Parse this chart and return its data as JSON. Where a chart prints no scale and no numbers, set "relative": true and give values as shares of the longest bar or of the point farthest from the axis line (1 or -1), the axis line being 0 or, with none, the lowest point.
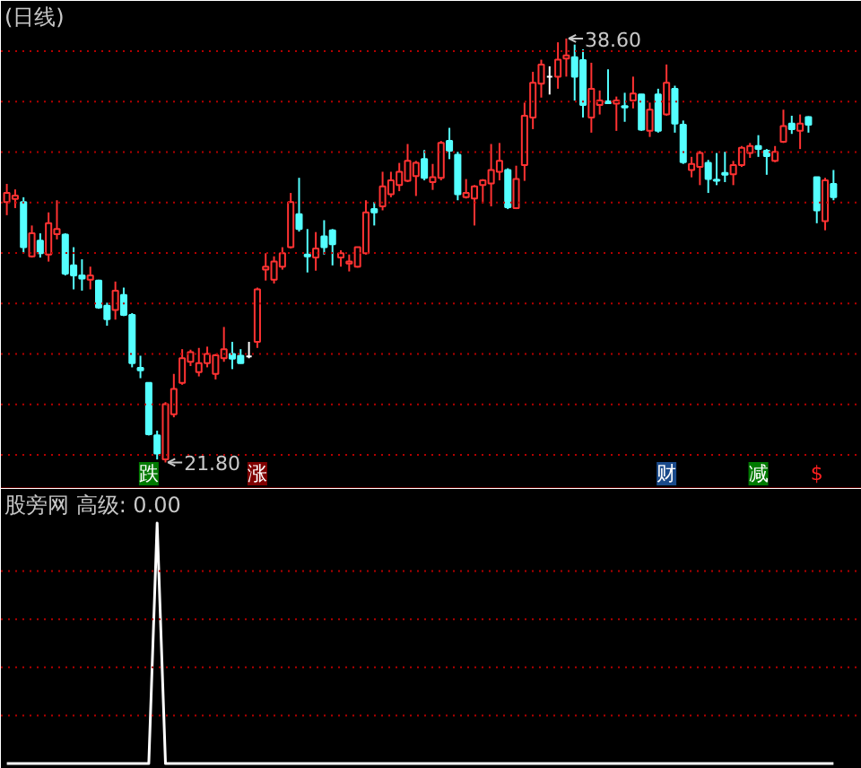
{
  "chart_data": [
    {
      "type": "candlestick",
      "title": "(日线)",
      "categories": [
        null,
        null,
        null,
        null,
        null,
        null,
        null,
        null,
        null,
        null,
        null,
        null,
        null,
        null,
        null,
        null,
        null,
        null,
        null,
        null,
        null,
        null,
        null,
        null,
        null,
        null,
        null,
        null,
        null,
        null,
        null,
        null,
        null,
        null,
        null,
        null,
        null,
        null,
        null,
        null,
        null,
        null,
        null,
        null,
        null,
        null,
        null,
        null,
        null,
        null,
        null,
        null,
        null,
        null,
        null,
        null,
        null,
        null,
        null,
        null,
        null,
        null,
        null,
        null,
        null,
        null,
        null,
        null,
        null,
        null,
        null,
        null,
        null,
        null,
        null,
        null,
        null,
        null,
        null,
        null,
        null,
        null,
        null,
        null,
        null,
        null,
        null,
        null,
        null,
        null,
        null,
        null,
        null,
        null,
        null,
        null,
        null,
        null,
        null,
        null
      ],
      "ohlc": [
        [
          32.12,
          32.84,
          31.6,
          32.48
        ],
        [
          32.24,
          32.62,
          31.88,
          32.38
        ],
        [
          32.12,
          32.31,
          30.09,
          30.33
        ],
        [
          29.97,
          31.19,
          29.92,
          30.88
        ],
        [
          30.59,
          30.88,
          29.92,
          30.09
        ],
        [
          30.04,
          31.71,
          29.76,
          31.28
        ],
        [
          30.85,
          32.19,
          30.64,
          31.05
        ],
        [
          30.83,
          30.88,
          29.21,
          29.28
        ],
        [
          29.61,
          30.33,
          28.66,
          29.21
        ],
        [
          29.21,
          29.85,
          28.61,
          29.09
        ],
        [
          29.04,
          29.56,
          28.66,
          29.21
        ],
        [
          29.01,
          29.04,
          27.89,
          27.94
        ],
        [
          28.01,
          28.13,
          27.22,
          27.48
        ],
        [
          27.84,
          28.97,
          27.46,
          28.61
        ],
        [
          28.44,
          28.73,
          27.6,
          27.65
        ],
        [
          27.65,
          27.72,
          25.57,
          25.74
        ],
        [
          25.55,
          26.03,
          25.14,
          25.45
        ],
        [
          24.95,
          24.98,
          22.87,
          22.92
        ],
        [
          22.87,
          23.06,
          21.92,
          22.15
        ],
        [
          21.92,
          24.19,
          21.8,
          24.11
        ],
        [
          23.71,
          25.31,
          23.59,
          24.71
        ],
        [
          24.95,
          26.29,
          24.88,
          25.93
        ],
        [
          25.79,
          26.27,
          25.62,
          26.17
        ],
        [
          25.38,
          26.34,
          25.21,
          25.74
        ],
        [
          25.74,
          26.39,
          25.57,
          26.1
        ],
        [
          25.31,
          26.1,
          25.09,
          26.05
        ],
        [
          25.93,
          27.17,
          25.79,
          26.29
        ],
        [
          26.1,
          26.58,
          25.5,
          25.91
        ],
        [
          26.03,
          26.29,
          25.72,
          25.74
        ],
        [
          26.0,
          26.58,
          25.93,
          26.0
        ],
        [
          26.58,
          28.73,
          26.34,
          28.66
        ],
        [
          29.44,
          30.09,
          29.01,
          29.56
        ],
        [
          29.04,
          29.97,
          28.89,
          29.76
        ],
        [
          29.56,
          30.33,
          29.44,
          30.09
        ],
        [
          30.33,
          32.48,
          30.28,
          32.12
        ],
        [
          31.64,
          33.08,
          30.95,
          31.05
        ],
        [
          30.04,
          31.05,
          29.33,
          29.97
        ],
        [
          29.92,
          30.93,
          29.4,
          30.28
        ],
        [
          30.76,
          31.4,
          30.04,
          30.33
        ],
        [
          31.0,
          31.05,
          29.61,
          30.45
        ],
        [
          29.92,
          30.21,
          29.56,
          30.09
        ],
        [
          29.68,
          30.04,
          29.37,
          29.76
        ],
        [
          29.56,
          30.35,
          29.52,
          30.33
        ],
        [
          30.09,
          32.19,
          30.04,
          31.71
        ],
        [
          31.84,
          32.12,
          31.19,
          31.71
        ],
        [
          31.95,
          33.32,
          31.79,
          32.74
        ],
        [
          32.43,
          33.32,
          32.31,
          32.98
        ],
        [
          32.79,
          33.67,
          32.55,
          33.32
        ],
        [
          32.96,
          34.42,
          32.91,
          33.75
        ],
        [
          33.15,
          33.75,
          32.36,
          33.67
        ],
        [
          33.82,
          34.18,
          32.98,
          33.08
        ],
        [
          32.91,
          33.63,
          32.6,
          33.1
        ],
        [
          33.08,
          34.54,
          32.98,
          34.46
        ],
        [
          34.54,
          35.06,
          33.82,
          34.15
        ],
        [
          33.99,
          34.11,
          32.19,
          32.43
        ],
        [
          32.31,
          33.03,
          32.26,
          32.48
        ],
        [
          32.26,
          32.79,
          31.19,
          32.74
        ],
        [
          32.79,
          33.03,
          32.07,
          32.98
        ],
        [
          32.86,
          34.42,
          31.95,
          33.39
        ],
        [
          33.32,
          34.46,
          32.98,
          33.75
        ],
        [
          33.39,
          33.46,
          31.84,
          31.91
        ],
        [
          31.88,
          33.56,
          31.84,
          33.03
        ],
        [
          33.58,
          36.06,
          32.96,
          35.54
        ],
        [
          35.47,
          37.28,
          35.01,
          36.85
        ],
        [
          36.81,
          37.76,
          36.26,
          37.57
        ],
        [
          37.09,
          37.5,
          36.38,
          37.09
        ],
        [
          37.09,
          38.45,
          36.61,
          37.76
        ],
        [
          37.81,
          38.6,
          37.09,
          37.93
        ],
        [
          37.86,
          38.36,
          36.14,
          37.09
        ],
        [
          37.74,
          38.17,
          35.47,
          35.97
        ],
        [
          35.47,
          37.64,
          34.87,
          36.61
        ],
        [
          35.97,
          36.54,
          35.59,
          36.14
        ],
        [
          36.11,
          37.38,
          36.02,
          36.04
        ],
        [
          36.02,
          36.3,
          34.94,
          36.14
        ],
        [
          35.92,
          36.45,
          35.3,
          35.87
        ],
        [
          36.14,
          37.09,
          35.83,
          36.42
        ],
        [
          36.38,
          36.4,
          34.94,
          34.99
        ],
        [
          34.94,
          36.06,
          34.7,
          35.78
        ],
        [
          36.38,
          36.61,
          34.87,
          34.94
        ],
        [
          35.59,
          37.57,
          35.54,
          36.85
        ],
        [
          36.61,
          36.73,
          34.87,
          35.23
        ],
        [
          35.18,
          35.35,
          33.63,
          33.7
        ],
        [
          33.39,
          33.91,
          33.1,
          33.63
        ],
        [
          33.51,
          34.15,
          32.79,
          34.06
        ],
        [
          33.67,
          33.79,
          32.48,
          33.03
        ],
        [
          33.01,
          34.06,
          32.79,
          32.96
        ],
        [
          33.27,
          34.11,
          32.91,
          33.2
        ],
        [
          33.22,
          33.75,
          32.79,
          33.58
        ],
        [
          33.58,
          34.34,
          33.51,
          34.27
        ],
        [
          34.06,
          34.46,
          33.87,
          34.34
        ],
        [
          34.34,
          34.77,
          33.91,
          34.22
        ],
        [
          34.15,
          34.22,
          33.2,
          33.94
        ],
        [
          33.75,
          34.34,
          33.7,
          34.11
        ],
        [
          34.51,
          35.78,
          34.46,
          35.13
        ],
        [
          35.23,
          35.54,
          34.82,
          35.01
        ],
        [
          34.94,
          35.59,
          34.22,
          35.23
        ],
        [
          35.49,
          35.52,
          34.87,
          35.18
        ],
        [
          33.1,
          33.12,
          31.28,
          31.79
        ],
        [
          31.36,
          33.08,
          31.0,
          32.98
        ],
        [
          32.84,
          33.39,
          32.19,
          32.31
        ]
      ],
      "colors": [
        "#ff3232",
        "#ff3232",
        "#54ffff",
        "#ff3232",
        "#54ffff",
        "#ff3232",
        "#ff3232",
        "#54ffff",
        "#54ffff",
        "#54ffff",
        "#ff3232",
        "#54ffff",
        "#54ffff",
        "#ff3232",
        "#54ffff",
        "#54ffff",
        "#54ffff",
        "#54ffff",
        "#54ffff",
        "#ff3232",
        "#ff3232",
        "#ff3232",
        "#ff3232",
        "#ff3232",
        "#ff3232",
        "#ff3232",
        "#ff3232",
        "#54ffff",
        "#54ffff",
        "#ffffff",
        "#ff3232",
        "#ff3232",
        "#ff3232",
        "#ff3232",
        "#ff3232",
        "#54ffff",
        "#54ffff",
        "#ff3232",
        "#54ffff",
        "#54ffff",
        "#ff3232",
        "#ff3232",
        "#ff3232",
        "#ff3232",
        "#54ffff",
        "#ff3232",
        "#ff3232",
        "#ff3232",
        "#ff3232",
        "#ff3232",
        "#54ffff",
        "#ff3232",
        "#ff3232",
        "#54ffff",
        "#54ffff",
        "#ff3232",
        "#ff3232",
        "#ff3232",
        "#ff3232",
        "#ff3232",
        "#54ffff",
        "#ff3232",
        "#ff3232",
        "#ff3232",
        "#ff3232",
        "#ffffff",
        "#ff3232",
        "#ff3232",
        "#54ffff",
        "#54ffff",
        "#ff3232",
        "#ff3232",
        "#54ffff",
        "#ff3232",
        "#54ffff",
        "#ff3232",
        "#54ffff",
        "#ff3232",
        "#54ffff",
        "#ff3232",
        "#54ffff",
        "#54ffff",
        "#ff3232",
        "#ff3232",
        "#54ffff",
        "#54ffff",
        "#54ffff",
        "#ff3232",
        "#ff3232",
        "#ff3232",
        "#54ffff",
        "#54ffff",
        "#ff3232",
        "#ff3232",
        "#54ffff",
        "#ff3232",
        "#54ffff",
        "#54ffff",
        "#ff3232",
        "#54ffff"
      ],
      "value_labels": [
        null,
        null,
        null,
        null,
        null,
        null,
        null,
        null,
        null,
        null,
        null,
        null,
        null,
        null,
        null,
        null,
        null,
        "跌",
        null,
        "21.80",
        null,
        null,
        null,
        null,
        null,
        null,
        null,
        null,
        null,
        null,
        "涨",
        null,
        null,
        null,
        null,
        null,
        null,
        null,
        null,
        null,
        null,
        null,
        null,
        null,
        null,
        null,
        null,
        null,
        null,
        null,
        null,
        null,
        null,
        null,
        null,
        null,
        null,
        null,
        null,
        null,
        null,
        null,
        null,
        null,
        null,
        null,
        null,
        "38.60",
        null,
        null,
        null,
        null,
        null,
        null,
        null,
        null,
        null,
        null,
        null,
        "财",
        null,
        null,
        null,
        null,
        null,
        null,
        null,
        null,
        null,
        null,
        "减",
        null,
        null,
        null,
        null,
        null,
        null,
        "$",
        null,
        null
      ],
      "ref_lines": [
        {
          "axis": "y",
          "value": 22.1,
          "color": "#b40000",
          "line_style": "dotted"
        },
        {
          "axis": "y",
          "value": 24.1,
          "color": "#b40000",
          "line_style": "dotted"
        },
        {
          "axis": "y",
          "value": 26.1,
          "color": "#b40000",
          "line_style": "dotted"
        },
        {
          "axis": "y",
          "value": 28.1,
          "color": "#b40000",
          "line_style": "dotted"
        },
        {
          "axis": "y",
          "value": 30.1,
          "color": "#b40000",
          "line_style": "dotted"
        },
        {
          "axis": "y",
          "value": 32.1,
          "color": "#b40000",
          "line_style": "dotted"
        },
        {
          "axis": "y",
          "value": 34.1,
          "color": "#b40000",
          "line_style": "dotted"
        },
        {
          "axis": "y",
          "value": 36.1,
          "color": "#b40000",
          "line_style": "dotted"
        },
        {
          "axis": "y",
          "value": 38.1,
          "color": "#b40000",
          "line_style": "dotted"
        }
      ],
      "tick_labels": false
    },
    {
      "type": "line",
      "title": "股旁网 高级: 0.00",
      "relative": true,
      "categories": [
        null,
        null,
        null,
        null,
        null,
        null,
        null,
        null,
        null,
        null,
        null,
        null,
        null,
        null,
        null,
        null,
        null,
        null,
        null,
        null,
        null,
        null,
        null,
        null,
        null,
        null,
        null,
        null,
        null,
        null,
        null,
        null,
        null,
        null,
        null,
        null,
        null,
        null,
        null,
        null,
        null,
        null,
        null,
        null,
        null,
        null,
        null,
        null,
        null,
        null,
        null,
        null,
        null,
        null,
        null,
        null,
        null,
        null,
        null,
        null,
        null,
        null,
        null,
        null,
        null,
        null,
        null,
        null,
        null,
        null,
        null,
        null,
        null,
        null,
        null,
        null,
        null,
        null,
        null,
        null,
        null,
        null,
        null,
        null,
        null,
        null,
        null,
        null,
        null,
        null,
        null,
        null,
        null,
        null,
        null,
        null,
        null,
        null,
        null,
        null
      ],
      "series": [
        {
          "color": "#ffffff",
          "values": [
            0,
            0,
            0,
            0,
            0,
            0,
            0,
            0,
            0,
            0,
            0,
            0,
            0,
            0,
            0,
            0,
            0,
            0,
            1,
            0,
            0,
            0,
            0,
            0,
            0,
            0,
            0,
            0,
            0,
            0,
            0,
            0,
            0,
            0,
            0,
            0,
            0,
            0,
            0,
            0,
            0,
            0,
            0,
            0,
            0,
            0,
            0,
            0,
            0,
            0,
            0,
            0,
            0,
            0,
            0,
            0,
            0,
            0,
            0,
            0,
            0,
            0,
            0,
            0,
            0,
            0,
            0,
            0,
            0,
            0,
            0,
            0,
            0,
            0,
            0,
            0,
            0,
            0,
            0,
            0,
            0,
            0,
            0,
            0,
            0,
            0,
            0,
            0,
            0,
            0,
            0,
            0,
            0,
            0,
            0,
            0,
            0,
            0,
            0,
            0
          ]
        }
      ],
      "ref_lines": [
        {
          "axis": "y",
          "value": 0.2,
          "color": "#b40000",
          "line_style": "dotted"
        },
        {
          "axis": "y",
          "value": 0.4,
          "color": "#b40000",
          "line_style": "dotted"
        },
        {
          "axis": "y",
          "value": 0.6,
          "color": "#b40000",
          "line_style": "dotted"
        },
        {
          "axis": "y",
          "value": 0.8,
          "color": "#b40000",
          "line_style": "dotted"
        }
      ],
      "tick_labels": false
    }
  ]
}
